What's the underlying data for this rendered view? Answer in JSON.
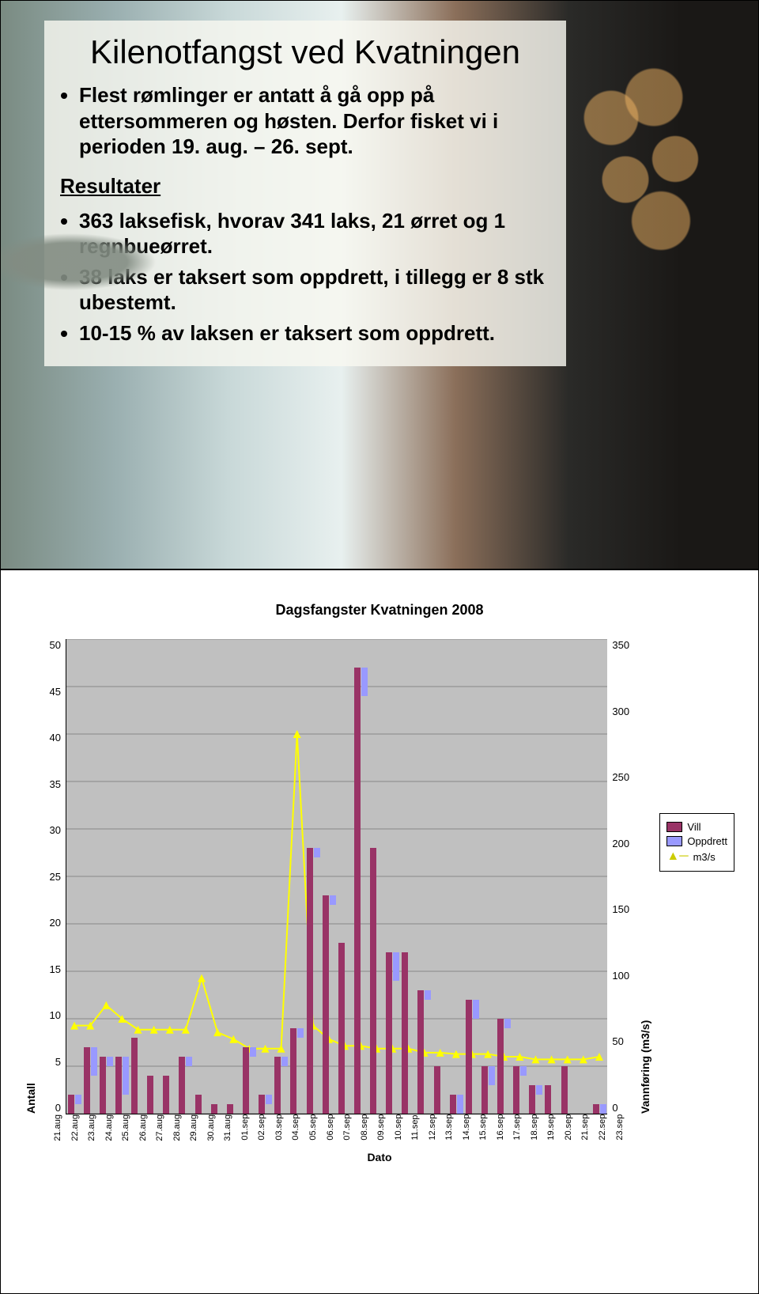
{
  "slide1": {
    "title": "Kilenotfangst ved Kvatningen",
    "bullets_a": [
      "Flest rømlinger er antatt å gå opp på ettersommeren og høsten. Derfor fisket vi i perioden 19. aug. – 26. sept."
    ],
    "subhead": "Resultater",
    "bullets_b": [
      "363 laksefisk, hvorav 341 laks, 21 ørret og 1 regnbueørret.",
      "38 laks er taksert som oppdrett, i tillegg er 8 stk ubestemt.",
      "10-15 % av laksen er taksert som oppdrett."
    ]
  },
  "chart": {
    "title": "Dagsfangster Kvatningen 2008",
    "type": "bar+line",
    "background_color": "#c0c0c0",
    "y_left": {
      "label": "Antall",
      "min": 0,
      "max": 50,
      "step": 5,
      "ticks": [
        "50",
        "45",
        "40",
        "35",
        "30",
        "25",
        "20",
        "15",
        "10",
        "5",
        "0"
      ]
    },
    "y_right": {
      "label": "Vannføring (m3/s)",
      "min": 0,
      "max": 350,
      "step": 50,
      "ticks": [
        "350",
        "300",
        "250",
        "200",
        "150",
        "100",
        "50",
        "0"
      ]
    },
    "x_label": "Dato",
    "categories": [
      "21.aug",
      "22.aug",
      "23.aug",
      "24.aug",
      "25.aug",
      "26.aug",
      "27.aug",
      "28.aug",
      "29.aug",
      "30.aug",
      "31.aug",
      "01.sep",
      "02.sep",
      "03.sep",
      "04.sep",
      "05.sep",
      "06.sep",
      "07.sep",
      "08.sep",
      "09.sep",
      "10.sep",
      "11.sep",
      "12.sep",
      "13.sep",
      "14.sep",
      "15.sep",
      "16.sep",
      "17.sep",
      "18.sep",
      "19.sep",
      "20.sep",
      "21.sep",
      "22.sep",
      "23.sep"
    ],
    "series": {
      "vill": {
        "color": "#993366",
        "values": [
          2,
          7,
          6,
          6,
          8,
          4,
          4,
          6,
          2,
          1,
          1,
          7,
          2,
          6,
          9,
          28,
          23,
          18,
          47,
          28,
          17,
          17,
          13,
          5,
          2,
          12,
          5,
          10,
          5,
          3,
          3,
          5,
          0,
          1
        ]
      },
      "oppdrett": {
        "color": "#9999ff",
        "values": [
          1,
          3,
          1,
          4,
          0,
          0,
          0,
          1,
          0,
          0,
          0,
          1,
          1,
          1,
          1,
          1,
          1,
          0,
          3,
          0,
          3,
          0,
          1,
          0,
          2,
          2,
          2,
          1,
          1,
          1,
          0,
          0,
          0,
          1
        ]
      },
      "flow": {
        "color": "#ffff00",
        "values": [
          65,
          65,
          80,
          70,
          62,
          62,
          62,
          62,
          100,
          60,
          55,
          48,
          48,
          48,
          280,
          65,
          55,
          50,
          50,
          48,
          48,
          48,
          45,
          45,
          44,
          44,
          44,
          42,
          42,
          40,
          40,
          40,
          40,
          42
        ]
      }
    },
    "legend": {
      "vill": "Vill",
      "oppdrett": "Oppdrett",
      "flow": "m3/s"
    }
  }
}
